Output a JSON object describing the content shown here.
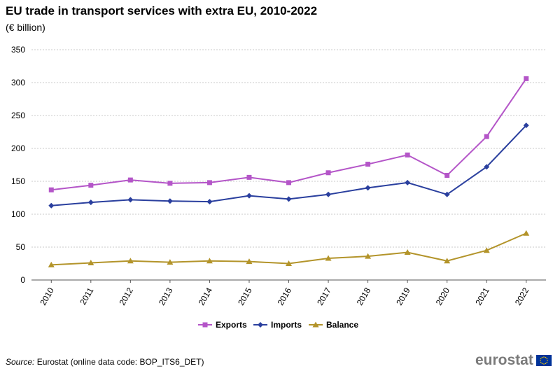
{
  "title": "EU trade in transport services with extra EU, 2010-2022",
  "subtitle": "(€ billion)",
  "source": {
    "label": "Source:",
    "text": "Eurostat (online data code: BOP_ITS6_DET)"
  },
  "logo": {
    "text": "eurostat",
    "flag_icon": "eu-flag-icon"
  },
  "colors": {
    "exports": "#b455c8",
    "imports": "#2a3f9e",
    "balance": "#b3942a",
    "grid": "#c8c8c8",
    "axis": "#555555"
  },
  "chart_data": {
    "type": "line",
    "title": "EU trade in transport services with extra EU, 2010-2022",
    "ylabel": "€ billion",
    "xlabel": "",
    "ylim": [
      0,
      350
    ],
    "yticks": [
      0,
      50,
      100,
      150,
      200,
      250,
      300,
      350
    ],
    "grid": true,
    "legend_position": "bottom",
    "categories": [
      "2010",
      "2011",
      "2012",
      "2013",
      "2014",
      "2015",
      "2016",
      "2017",
      "2018",
      "2019",
      "2020",
      "2021",
      "2022"
    ],
    "series": [
      {
        "name": "Exports",
        "marker": "square",
        "color": "#b455c8",
        "values": [
          137,
          144,
          152,
          147,
          148,
          156,
          148,
          163,
          176,
          190,
          159,
          218,
          306
        ]
      },
      {
        "name": "Imports",
        "marker": "diamond",
        "color": "#2a3f9e",
        "values": [
          113,
          118,
          122,
          120,
          119,
          128,
          123,
          130,
          140,
          148,
          130,
          172,
          235
        ]
      },
      {
        "name": "Balance",
        "marker": "triangle",
        "color": "#b3942a",
        "values": [
          23,
          26,
          29,
          27,
          29,
          28,
          25,
          33,
          36,
          42,
          29,
          45,
          71
        ]
      }
    ]
  }
}
